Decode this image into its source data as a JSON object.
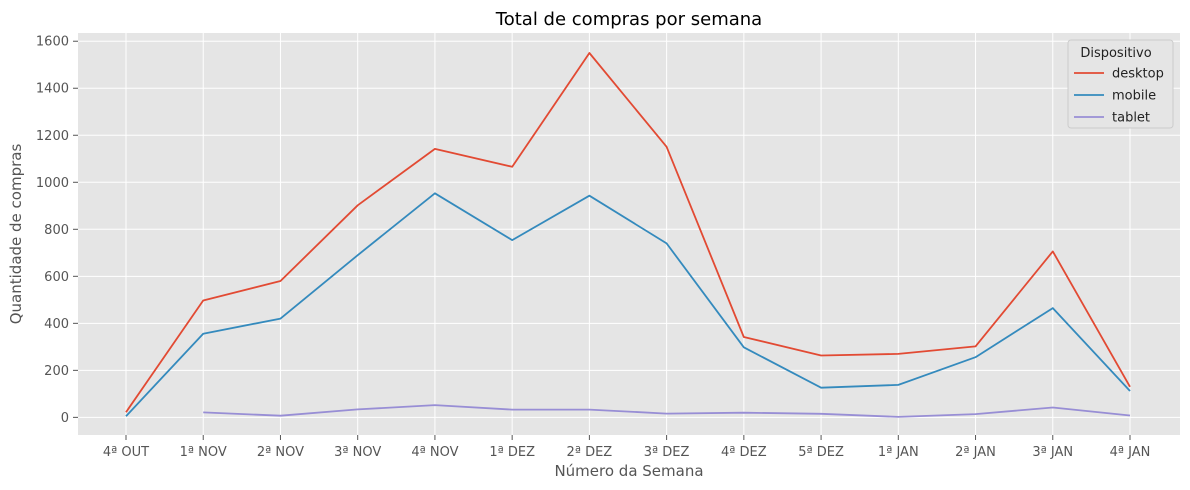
{
  "chart_data": {
    "type": "line",
    "title": "Total de compras por semana",
    "xlabel": "Número da Semana",
    "ylabel": "Quantidade de compras",
    "categories": [
      "4ª OUT",
      "1ª NOV",
      "2ª NOV",
      "3ª NOV",
      "4ª NOV",
      "1ª DEZ",
      "2ª DEZ",
      "3ª DEZ",
      "4ª DEZ",
      "5ª DEZ",
      "1ª JAN",
      "2ª JAN",
      "3ª JAN",
      "4ª JAN"
    ],
    "ylim": [
      -75,
      1635
    ],
    "yticks": [
      0,
      200,
      400,
      600,
      800,
      1000,
      1200,
      1400,
      1600
    ],
    "grid": true,
    "legend": {
      "title": "Dispositivo",
      "placement": "top-right"
    },
    "series": [
      {
        "name": "desktop",
        "color": "#E24A33",
        "values": [
          22,
          497,
          580,
          902,
          1142,
          1066,
          1550,
          1151,
          342,
          263,
          270,
          302,
          706,
          130
        ]
      },
      {
        "name": "mobile",
        "color": "#348ABD",
        "values": [
          5,
          356,
          420,
          690,
          953,
          754,
          943,
          740,
          298,
          126,
          138,
          256,
          465,
          112
        ]
      },
      {
        "name": "tablet",
        "color": "#988ED5",
        "values": [
          null,
          21,
          7,
          34,
          52,
          33,
          33,
          16,
          20,
          15,
          2,
          14,
          42,
          8
        ]
      }
    ]
  }
}
